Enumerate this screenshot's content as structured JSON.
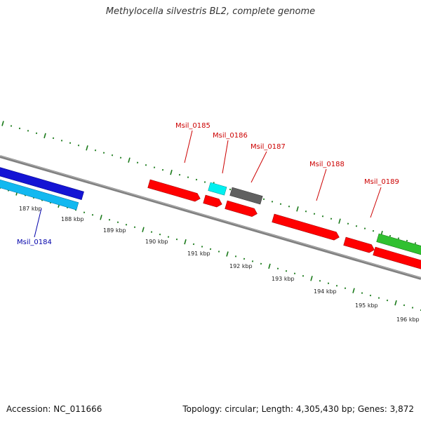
{
  "title": "Methylocella silvestris BL2, complete genome",
  "footer": {
    "accession": "Accession: NC_011666",
    "summary": "Topology: circular; Length: 4,305,430 bp; Genes: 3,872"
  },
  "colors": {
    "backbone": "#808080",
    "ticks": "#1a7a1a",
    "gene_red": "#ff0000",
    "gene_blue": "#1414d4",
    "gene_cyan": "#12b8f0",
    "gene_aqua": "#00f0f0",
    "gene_gray": "#606060",
    "gene_green": "#30c030",
    "label_red": "#cc0000",
    "label_blue": "#0000aa"
  },
  "kbp_labels": [
    "187 kbp",
    "188 kbp",
    "189 kbp",
    "190 kbp",
    "191 kbp",
    "192 kbp",
    "193 kbp",
    "194 kbp",
    "195 kbp",
    "196 kbp"
  ],
  "gene_labels": [
    {
      "name": "Msil_0184",
      "color": "label_blue"
    },
    {
      "name": "Msil_0185",
      "color": "label_red"
    },
    {
      "name": "Msil_0186",
      "color": "label_red"
    },
    {
      "name": "Msil_0187",
      "color": "label_red"
    },
    {
      "name": "Msil_0188",
      "color": "label_red"
    },
    {
      "name": "Msil_0189",
      "color": "label_red"
    }
  ]
}
